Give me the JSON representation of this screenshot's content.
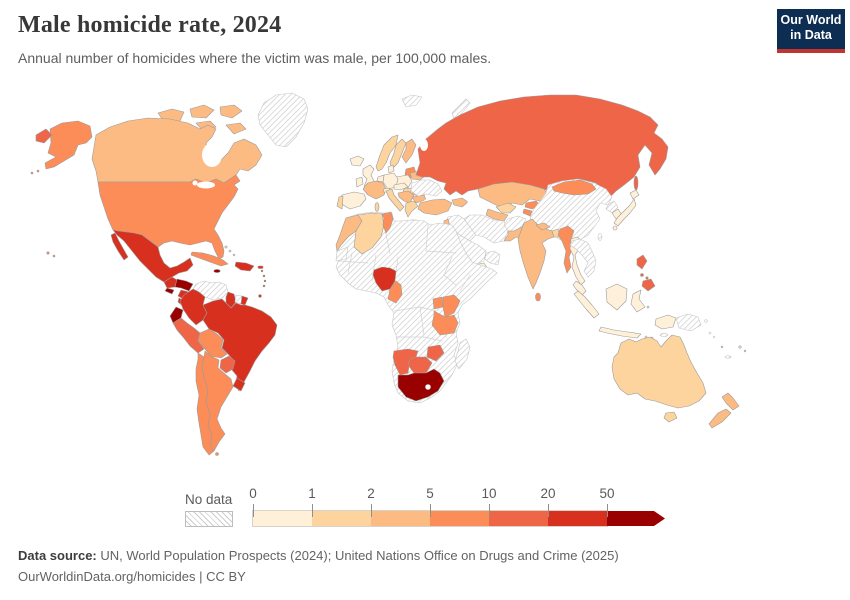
{
  "header": {
    "title": "Male homicide rate, 2024",
    "subtitle": "Annual number of homicides where the victim was male, per 100,000 males."
  },
  "logo": {
    "line1": "Our World",
    "line2": "in Data",
    "bg": "#0d2e52",
    "accent": "#c0352f"
  },
  "legend": {
    "no_data_label": "No data",
    "ticks": [
      "0",
      "1",
      "2",
      "5",
      "10",
      "20",
      "50"
    ]
  },
  "footer": {
    "source_label": "Data source:",
    "source_text": " UN, World Population Prospects (2024); United Nations Office on Drugs and Crime (2025)",
    "link_line": "OurWorldinData.org/homicides | CC BY"
  },
  "chart_data": {
    "type": "choropleth",
    "title": "Male homicide rate, 2024",
    "unit": "homicides per 100,000 males",
    "bins": [
      0,
      1,
      2,
      5,
      10,
      20,
      50
    ],
    "bin_labels": [
      "0-1",
      "1-2",
      "2-5",
      "5-10",
      "10-20",
      "20-50",
      "50+"
    ],
    "bin_colors": [
      "#fef0d9",
      "#fdd49e",
      "#fdbb84",
      "#fc8d59",
      "#ef6548",
      "#d7301f",
      "#990000"
    ],
    "no_data": "hatched",
    "countries": {
      "greenland": "x",
      "canada": 2,
      "united-states": 3,
      "mexico": 5,
      "guatemala": 5,
      "honduras": 6,
      "el-salvador": 6,
      "nicaragua": 5,
      "costa-rica": 5,
      "panama": 5,
      "cuba": 3,
      "jamaica": 6,
      "hispaniola": 5,
      "puerto-rico": 5,
      "bahamas": 0,
      "lesser-antilles": 5,
      "trinidad-and-tobago": 5,
      "venezuela": "x",
      "colombia": 5,
      "guyana": 5,
      "suriname": "x",
      "french-guiana": 5,
      "ecuador": 6,
      "peru": 4,
      "brazil": 5,
      "bolivia": 3,
      "paraguay": 4,
      "uruguay": 5,
      "argentina": 3,
      "chile": 3,
      "iceland": 0,
      "united-kingdom": 0,
      "ireland": 0,
      "portugal": 1,
      "spain": 0,
      "france": 2,
      "norway": 1,
      "sweden": 1,
      "finland": 2,
      "denmark": 0,
      "germany": 0,
      "benelux": 0,
      "poland": 0,
      "baltic-states": 3,
      "belarus": 2,
      "ukraine": "x",
      "central-europe": 0,
      "hungary": 1,
      "switzerland": 0,
      "italy": 1,
      "western-balkans": 2,
      "romania": 2,
      "bulgaria": 2,
      "greece": 1,
      "turkey": 2,
      "caucasus": 2,
      "russia": 4,
      "kazakhstan": 2,
      "uzbekistan": 1,
      "turkmenistan": 2,
      "kyrgyzstan": 3,
      "tajikistan": 3,
      "china": "x",
      "mongolia": 3,
      "north-korea": "x",
      "south-korea": 0,
      "japan": 0,
      "india": 2,
      "nepal": 2,
      "bangladesh": 1,
      "pakistan": 2,
      "sri-lanka": 3,
      "myanmar": 3,
      "thailand": 0,
      "indochina": "x",
      "malaysia": 0,
      "indonesia": 0,
      "timor-leste": "x",
      "philippines": 4,
      "taiwan": "x",
      "papua-new-guinea": "x",
      "solomon-islands": "x",
      "new-caledonia": "x",
      "vanuatu": 0,
      "fiji": 0,
      "australia": 1,
      "new-zealand": 2,
      "africa-region-no-data": "x",
      "morocco": 2,
      "western-sahara": "x",
      "algeria": 1,
      "tunisia": 3,
      "nigeria": 5,
      "cameroon": 3,
      "uganda": 3,
      "kenya": 3,
      "tanzania": 3,
      "zimbabwe": 4,
      "namibia": 4,
      "botswana": 4,
      "south-africa": 6,
      "madagascar": "x",
      "iraq-syria": "x",
      "iran-afghanistan": "x",
      "arabian-peninsula": "x",
      "israel-jordan-lebanon": 2,
      "yemen": 0,
      "svalbard": "x",
      "novaya-zemlya": "x"
    }
  }
}
